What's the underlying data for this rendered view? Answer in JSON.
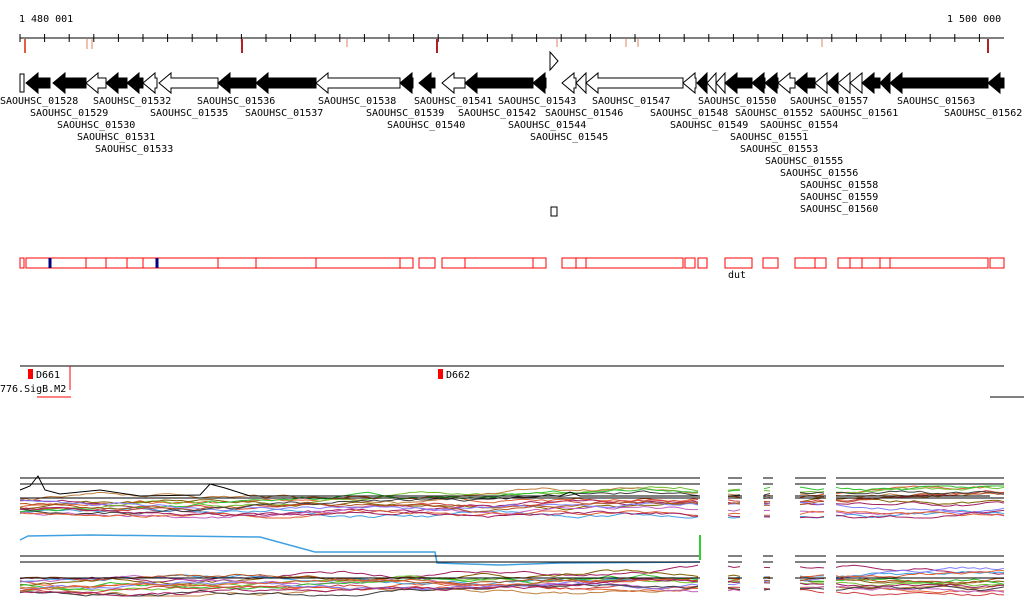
{
  "ruler": {
    "start_label": "1 480 001",
    "end_label": "1 500 000"
  },
  "genes": [
    "SAOUHSC_01528",
    "SAOUHSC_01529",
    "SAOUHSC_01530",
    "SAOUHSC_01531",
    "SAOUHSC_01532",
    "SAOUHSC_01533",
    "SAOUHSC_01535",
    "SAOUHSC_01536",
    "SAOUHSC_01537",
    "SAOUHSC_01538",
    "SAOUHSC_01539",
    "SAOUHSC_01540",
    "SAOUHSC_01541",
    "SAOUHSC_01542",
    "SAOUHSC_01543",
    "SAOUHSC_01544",
    "SAOUHSC_01545",
    "SAOUHSC_01546",
    "SAOUHSC_01547",
    "SAOUHSC_01548",
    "SAOUHSC_01549",
    "SAOUHSC_01550",
    "SAOUHSC_01551",
    "SAOUHSC_01552",
    "SAOUHSC_01553",
    "SAOUHSC_01554",
    "SAOUHSC_01555",
    "SAOUHSC_01556",
    "SAOUHSC_01557",
    "SAOUHSC_01558",
    "SAOUHSC_01559",
    "SAOUHSC_01560",
    "SAOUHSC_01561",
    "SAOUHSC_01562",
    "SAOUHSC_01563"
  ],
  "feature_label": "dut",
  "sites": {
    "d661": "D661",
    "d662": "D662",
    "sigb": "776.SigB.M2"
  },
  "colors": {
    "gene": "#000000",
    "outline": "#ff0000",
    "tick": "#b22222",
    "mark": "#000080"
  }
}
